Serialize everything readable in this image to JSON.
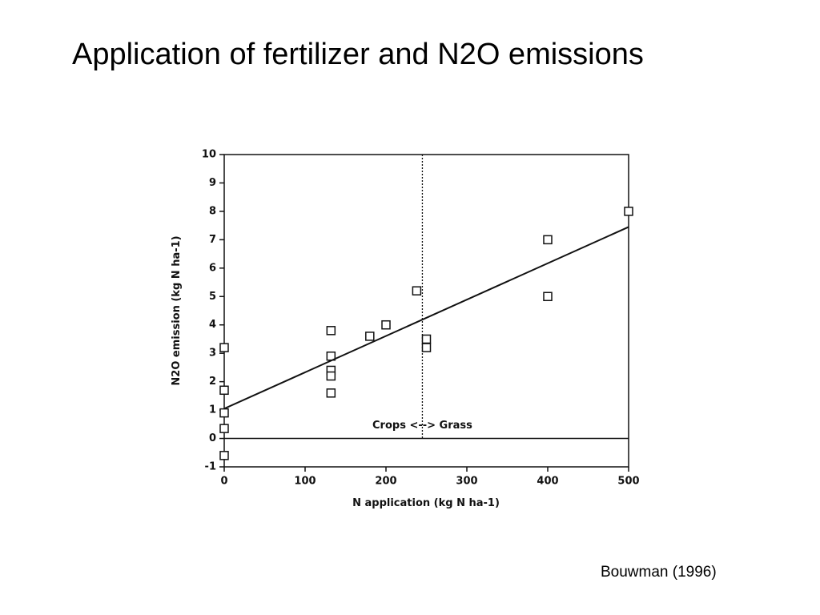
{
  "chart_data": {
    "type": "scatter",
    "title": "Application of fertilizer and N2O emissions",
    "source": "Bouwman (1996)",
    "x_label": "N application (kg N ha-1)",
    "y_label": "N2O emission (kg N ha-1)",
    "x": [
      0,
      0,
      0,
      0,
      0,
      132,
      132,
      132,
      132,
      132,
      180,
      200,
      238,
      250,
      250,
      400,
      400,
      500
    ],
    "values": [
      3.2,
      1.7,
      0.9,
      0.35,
      -0.6,
      3.8,
      2.9,
      2.4,
      2.2,
      1.6,
      3.6,
      4.0,
      5.2,
      3.5,
      3.2,
      7.0,
      5.0,
      8.0
    ],
    "fit": {
      "x": [
        0,
        500
      ],
      "y": [
        1.05,
        7.45
      ]
    },
    "divider": {
      "x": 245,
      "label": "Crops <--> Grass"
    },
    "zero_line": true,
    "xlim": [
      0,
      500
    ],
    "xticks": [
      0,
      100,
      200,
      300,
      400,
      500
    ],
    "ylim": [
      -1,
      10
    ],
    "yticks": [
      -1,
      0,
      1,
      2,
      3,
      4,
      5,
      6,
      7,
      8,
      9,
      10
    ],
    "color": "#111111"
  }
}
